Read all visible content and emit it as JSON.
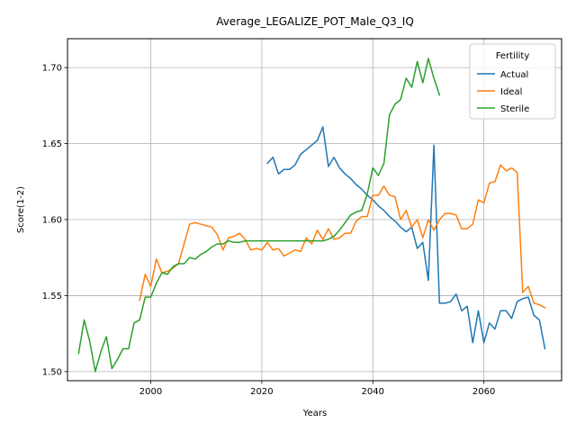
{
  "chart_data": {
    "type": "line",
    "title": "Average_LEGALIZE_POT_Male_Q3_IQ",
    "xlabel": "Years",
    "ylabel": "Score(1-2)",
    "xlim": [
      1985,
      2074
    ],
    "ylim": [
      1.494,
      1.719
    ],
    "xticks": [
      2000,
      2020,
      2040,
      2060
    ],
    "yticks": [
      1.5,
      1.55,
      1.6,
      1.65,
      1.7
    ],
    "xtick_labels": [
      "2000",
      "2020",
      "2040",
      "2060"
    ],
    "ytick_labels": [
      "1.50",
      "1.55",
      "1.60",
      "1.65",
      "1.70"
    ],
    "grid": true,
    "legend": {
      "title": "Fertility",
      "placement": "top-right"
    },
    "series": [
      {
        "name": "Actual",
        "color": "#1f77b4",
        "points": [
          [
            2021,
            1.637
          ],
          [
            2022,
            1.641
          ],
          [
            2023,
            1.63
          ],
          [
            2024,
            1.633
          ],
          [
            2025,
            1.633
          ],
          [
            2026,
            1.636
          ],
          [
            2027,
            1.643
          ],
          [
            2028,
            1.646
          ],
          [
            2029,
            1.649
          ],
          [
            2030,
            1.652
          ],
          [
            2031,
            1.661
          ],
          [
            2032,
            1.635
          ],
          [
            2033,
            1.641
          ],
          [
            2034,
            1.634
          ],
          [
            2035,
            1.63
          ],
          [
            2036,
            1.627
          ],
          [
            2037,
            1.623
          ],
          [
            2038,
            1.62
          ],
          [
            2039,
            1.616
          ],
          [
            2040,
            1.613
          ],
          [
            2041,
            1.609
          ],
          [
            2042,
            1.606
          ],
          [
            2043,
            1.602
          ],
          [
            2044,
            1.599
          ],
          [
            2045,
            1.595
          ],
          [
            2046,
            1.592
          ],
          [
            2047,
            1.595
          ],
          [
            2048,
            1.581
          ],
          [
            2049,
            1.585
          ],
          [
            2050,
            1.56
          ],
          [
            2051,
            1.649
          ],
          [
            2052,
            1.545
          ],
          [
            2053,
            1.545
          ],
          [
            2054,
            1.546
          ],
          [
            2055,
            1.551
          ],
          [
            2056,
            1.54
          ],
          [
            2057,
            1.543
          ],
          [
            2058,
            1.519
          ],
          [
            2059,
            1.54
          ],
          [
            2060,
            1.519
          ],
          [
            2061,
            1.532
          ],
          [
            2062,
            1.528
          ],
          [
            2063,
            1.54
          ],
          [
            2064,
            1.54
          ],
          [
            2065,
            1.535
          ],
          [
            2066,
            1.546
          ],
          [
            2067,
            1.548
          ],
          [
            2068,
            1.549
          ],
          [
            2069,
            1.537
          ],
          [
            2070,
            1.534
          ],
          [
            2071,
            1.515
          ]
        ]
      },
      {
        "name": "Ideal",
        "color": "#ff7f0e",
        "points": [
          [
            1998,
            1.547
          ],
          [
            1999,
            1.564
          ],
          [
            2000,
            1.556
          ],
          [
            2001,
            1.574
          ],
          [
            2002,
            1.565
          ],
          [
            2003,
            1.566
          ],
          [
            2004,
            1.568
          ],
          [
            2005,
            1.571
          ],
          [
            2006,
            1.584
          ],
          [
            2007,
            1.597
          ],
          [
            2008,
            1.598
          ],
          [
            2009,
            1.597
          ],
          [
            2010,
            1.596
          ],
          [
            2011,
            1.595
          ],
          [
            2012,
            1.59
          ],
          [
            2013,
            1.58
          ],
          [
            2014,
            1.588
          ],
          [
            2015,
            1.589
          ],
          [
            2016,
            1.591
          ],
          [
            2017,
            1.587
          ],
          [
            2018,
            1.58
          ],
          [
            2019,
            1.581
          ],
          [
            2020,
            1.58
          ],
          [
            2021,
            1.585
          ],
          [
            2022,
            1.58
          ],
          [
            2023,
            1.581
          ],
          [
            2024,
            1.576
          ],
          [
            2025,
            1.578
          ],
          [
            2026,
            1.58
          ],
          [
            2027,
            1.579
          ],
          [
            2028,
            1.588
          ],
          [
            2029,
            1.584
          ],
          [
            2030,
            1.593
          ],
          [
            2031,
            1.587
          ],
          [
            2032,
            1.594
          ],
          [
            2033,
            1.587
          ],
          [
            2034,
            1.588
          ],
          [
            2035,
            1.591
          ],
          [
            2036,
            1.591
          ],
          [
            2037,
            1.599
          ],
          [
            2038,
            1.602
          ],
          [
            2039,
            1.602
          ],
          [
            2040,
            1.616
          ],
          [
            2041,
            1.616
          ],
          [
            2042,
            1.622
          ],
          [
            2043,
            1.616
          ],
          [
            2044,
            1.615
          ],
          [
            2045,
            1.6
          ],
          [
            2046,
            1.606
          ],
          [
            2047,
            1.595
          ],
          [
            2048,
            1.6
          ],
          [
            2049,
            1.588
          ],
          [
            2050,
            1.6
          ],
          [
            2051,
            1.593
          ],
          [
            2052,
            1.6
          ],
          [
            2053,
            1.604
          ],
          [
            2054,
            1.604
          ],
          [
            2055,
            1.603
          ],
          [
            2056,
            1.594
          ],
          [
            2057,
            1.594
          ],
          [
            2058,
            1.597
          ],
          [
            2059,
            1.613
          ],
          [
            2060,
            1.611
          ],
          [
            2061,
            1.624
          ],
          [
            2062,
            1.625
          ],
          [
            2063,
            1.636
          ],
          [
            2064,
            1.632
          ],
          [
            2065,
            1.634
          ],
          [
            2066,
            1.631
          ],
          [
            2067,
            1.552
          ],
          [
            2068,
            1.556
          ],
          [
            2069,
            1.545
          ],
          [
            2070,
            1.544
          ],
          [
            2071,
            1.542
          ]
        ]
      },
      {
        "name": "Sterile",
        "color": "#2ca02c",
        "points": [
          [
            1987,
            1.512
          ],
          [
            1988,
            1.534
          ],
          [
            1989,
            1.52
          ],
          [
            1990,
            1.5
          ],
          [
            1991,
            1.513
          ],
          [
            1992,
            1.523
          ],
          [
            1993,
            1.502
          ],
          [
            1994,
            1.508
          ],
          [
            1995,
            1.515
          ],
          [
            1996,
            1.515
          ],
          [
            1997,
            1.532
          ],
          [
            1998,
            1.534
          ],
          [
            1999,
            1.549
          ],
          [
            2000,
            1.549
          ],
          [
            2001,
            1.558
          ],
          [
            2002,
            1.565
          ],
          [
            2003,
            1.564
          ],
          [
            2004,
            1.569
          ],
          [
            2005,
            1.571
          ],
          [
            2006,
            1.571
          ],
          [
            2007,
            1.575
          ],
          [
            2008,
            1.574
          ],
          [
            2009,
            1.577
          ],
          [
            2010,
            1.579
          ],
          [
            2011,
            1.582
          ],
          [
            2012,
            1.584
          ],
          [
            2013,
            1.584
          ],
          [
            2014,
            1.586
          ],
          [
            2015,
            1.585
          ],
          [
            2016,
            1.585
          ],
          [
            2017,
            1.586
          ],
          [
            2018,
            1.586
          ],
          [
            2019,
            1.586
          ],
          [
            2020,
            1.586
          ],
          [
            2021,
            1.586
          ],
          [
            2022,
            1.586
          ],
          [
            2023,
            1.586
          ],
          [
            2024,
            1.586
          ],
          [
            2025,
            1.586
          ],
          [
            2026,
            1.586
          ],
          [
            2027,
            1.586
          ],
          [
            2028,
            1.586
          ],
          [
            2029,
            1.586
          ],
          [
            2030,
            1.586
          ],
          [
            2031,
            1.586
          ],
          [
            2032,
            1.587
          ],
          [
            2033,
            1.589
          ],
          [
            2034,
            1.593
          ],
          [
            2035,
            1.598
          ],
          [
            2036,
            1.603
          ],
          [
            2037,
            1.605
          ],
          [
            2038,
            1.606
          ],
          [
            2039,
            1.617
          ],
          [
            2040,
            1.634
          ],
          [
            2041,
            1.629
          ],
          [
            2042,
            1.637
          ],
          [
            2043,
            1.669
          ],
          [
            2044,
            1.676
          ],
          [
            2045,
            1.679
          ],
          [
            2046,
            1.693
          ],
          [
            2047,
            1.687
          ],
          [
            2048,
            1.704
          ],
          [
            2049,
            1.69
          ],
          [
            2050,
            1.706
          ],
          [
            2051,
            1.693
          ],
          [
            2052,
            1.682
          ]
        ]
      }
    ]
  }
}
